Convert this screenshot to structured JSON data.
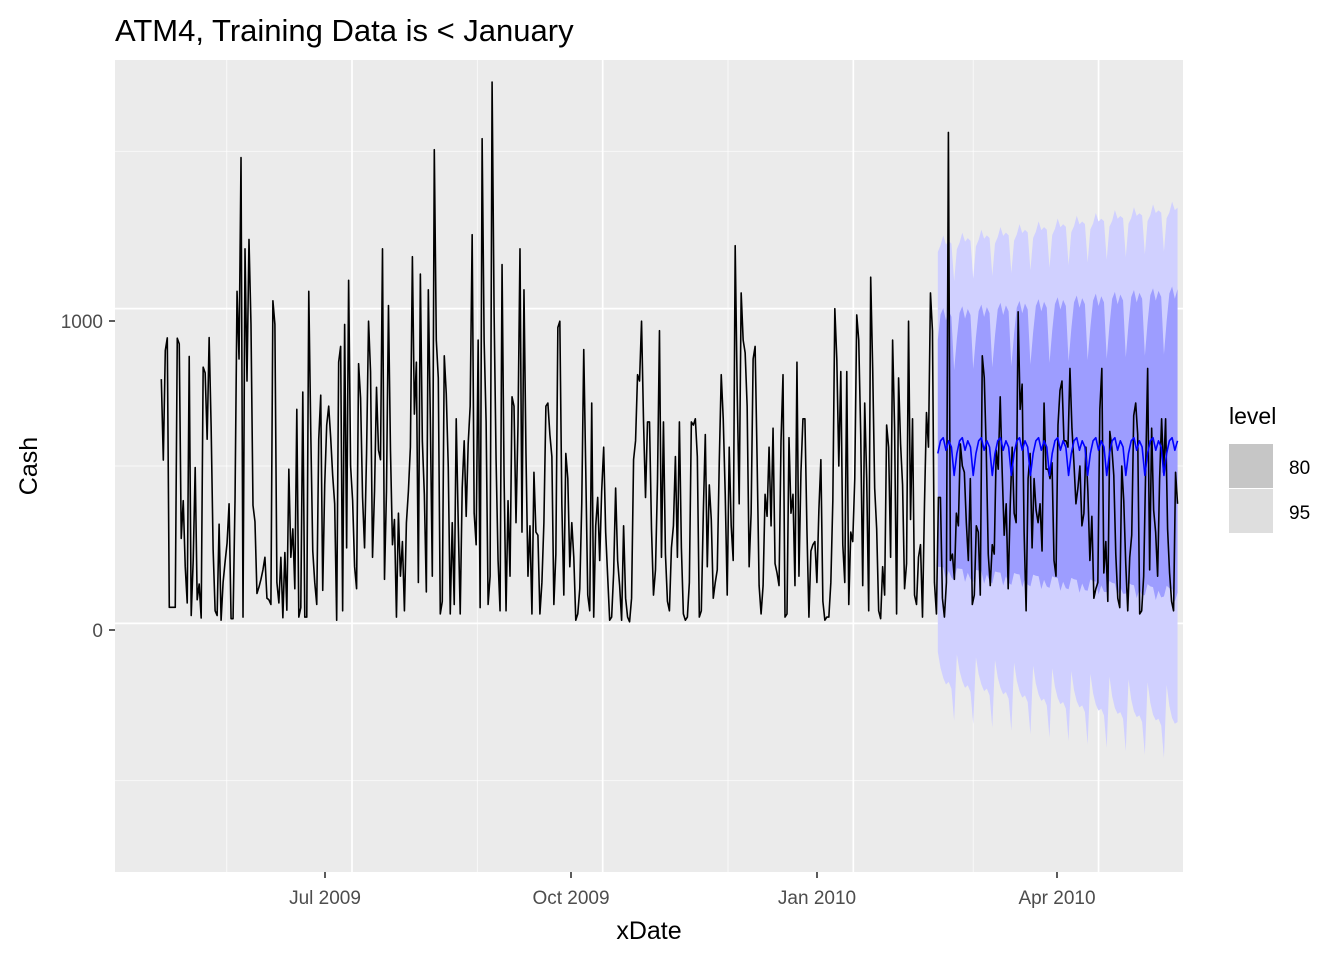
{
  "chart_data": {
    "type": "line",
    "title": "ATM4, Training Data is < January",
    "xlabel": "xDate",
    "ylabel": "Cash",
    "x_ticks": [
      "Jul 2009",
      "Oct 2009",
      "Jan 2010",
      "Apr 2010"
    ],
    "y_ticks": [
      "0",
      "1000"
    ],
    "x_tick_dates": [
      "2009-07-01",
      "2009-10-01",
      "2010-01-01",
      "2010-04-01"
    ],
    "y_tick_values": [
      0,
      1000
    ],
    "xlim": [
      "2009-04-05",
      "2010-05-02"
    ],
    "ylim": [
      -790,
      1790
    ],
    "grid": true,
    "legend": {
      "title": "level",
      "position": "right",
      "entries": [
        {
          "label": "80",
          "color": "#c6c6c6"
        },
        {
          "label": "95",
          "color": "#dedede"
        }
      ]
    },
    "colors": {
      "panel": "#ebebeb",
      "grid": "#ffffff",
      "actual": "#000000",
      "forecast": "#0000ff",
      "band80": "#9d9dff",
      "band95": "#d0d0ff"
    },
    "series": [
      {
        "role": "actual",
        "x_start": "2009-04-22",
        "x_end": "2010-04-30",
        "y": [
          776,
          519,
          867,
          907,
          51,
          51,
          51,
          51,
          906,
          888,
          270,
          390,
          180,
          65,
          848,
          25,
          200,
          495,
          75,
          125,
          17,
          814,
          796,
          585,
          908,
          625,
          235,
          40,
          25,
          315,
          10,
          130,
          195,
          255,
          380,
          15,
          15,
          395,
          1055,
          840,
          1480,
          20,
          1190,
          770,
          1220,
          950,
          375,
          323,
          95,
          115,
          140,
          170,
          210,
          80,
          75,
          60,
          1025,
          950,
          130,
          65,
          210,
          18,
          225,
          42,
          490,
          210,
          300,
          110,
          680,
          20,
          50,
          735,
          20,
          20,
          1055,
          610,
          230,
          130,
          60,
          585,
          725,
          105,
          440,
          630,
          690,
          590,
          470,
          380,
          10,
          830,
          880,
          40,
          950,
          240,
          1090,
          500,
          390,
          180,
          110,
          825,
          715,
          400,
          240,
          540,
          960,
          800,
          210,
          420,
          750,
          550,
          520,
          1190,
          140,
          420,
          1010,
          550,
          250,
          330,
          20,
          350,
          150,
          260,
          40,
          320,
          420,
          560,
          1165,
          665,
          830,
          130,
          1110,
          580,
          410,
          100,
          1060,
          650,
          150,
          1505,
          900,
          780,
          30,
          70,
          850,
          730,
          500,
          30,
          320,
          60,
          650,
          320,
          30,
          430,
          580,
          340,
          570,
          690,
          1235,
          350,
          250,
          900,
          50,
          1540,
          900,
          640,
          60,
          150,
          1720,
          990,
          520,
          200,
          40,
          1140,
          470,
          40,
          390,
          150,
          720,
          690,
          320,
          630,
          1190,
          290,
          1060,
          540,
          150,
          310,
          30,
          480,
          290,
          280,
          30,
          130,
          320,
          690,
          700,
          600,
          530,
          60,
          220,
          940,
          960,
          380,
          90,
          540,
          460,
          180,
          320,
          210,
          10,
          30,
          110,
          380,
          870,
          490,
          90,
          40,
          700,
          20,
          310,
          400,
          200,
          420,
          560,
          290,
          150,
          10,
          20,
          160,
          430,
          200,
          120,
          10,
          310,
          80,
          20,
          5,
          80,
          520,
          580,
          790,
          770,
          960,
          640,
          400,
          640,
          640,
          300,
          90,
          170,
          450,
          930,
          210,
          640,
          220,
          70,
          40,
          240,
          310,
          530,
          210,
          640,
          240,
          30,
          10,
          20,
          130,
          640,
          630,
          650,
          530,
          20,
          40,
          350,
          600,
          180,
          440,
          330,
          80,
          130,
          170,
          510,
          790,
          650,
          410,
          90,
          560,
          310,
          200,
          1200,
          740,
          380,
          1050,
          900,
          860,
          690,
          180,
          350,
          840,
          880,
          520,
          120,
          30,
          120,
          410,
          340,
          560,
          310,
          620,
          190,
          160,
          120,
          580,
          790,
          20,
          30,
          590,
          350,
          410,
          120,
          830,
          150,
          480,
          650,
          650,
          300,
          20,
          230,
          250,
          260,
          130,
          360,
          520,
          70,
          10,
          20,
          20,
          130,
          390,
          1000,
          840,
          500,
          800,
          250,
          130,
          800,
          60,
          290,
          260,
          460,
          980,
          900,
          600,
          120,
          700,
          460,
          40,
          1100,
          810,
          430,
          300,
          40,
          15,
          180,
          90,
          630,
          560,
          210,
          900,
          620,
          30,
          780,
          570,
          440,
          110,
          190,
          960,
          330,
          650,
          90,
          60,
          210,
          250,
          20,
          380,
          670,
          560,
          1050,
          930,
          130,
          30,
          400,
          400,
          80,
          20,
          130,
          1560,
          200,
          220,
          140,
          350,
          310,
          570,
          500,
          480,
          320,
          200,
          460,
          60,
          90,
          310,
          290,
          90,
          850,
          780,
          550,
          220,
          120,
          250,
          220,
          550,
          490,
          720,
          480,
          280,
          380,
          110,
          370,
          560,
          350,
          320,
          990,
          680,
          760,
          290,
          40,
          460,
          540,
          240,
          460,
          360,
          320,
          380,
          230,
          700,
          490,
          490,
          460,
          510,
          200,
          150,
          630,
          740,
          770,
          580,
          580,
          560,
          810,
          620,
          510,
          380,
          430,
          500,
          310,
          350,
          560,
          420,
          200,
          340,
          80,
          110,
          130,
          680,
          810,
          160,
          260,
          70,
          610,
          560,
          470,
          220,
          80,
          50,
          500,
          390,
          190,
          40,
          210,
          280,
          660,
          700,
          600,
          30,
          40,
          150,
          490,
          810,
          170,
          620,
          360,
          290,
          150,
          460,
          650,
          480,
          650,
          300,
          160,
          70,
          40,
          480,
          380
        ]
      },
      {
        "role": "forecast",
        "x_start": "2010-02-01",
        "x_end": "2010-04-30",
        "y_pattern": [
          540,
          580,
          590,
          550,
          580,
          560,
          470
        ],
        "hi80_pattern": [
          900,
          980,
          1000,
          960,
          990,
          970,
          800
        ],
        "lo80_pattern": [
          180,
          180,
          180,
          140,
          170,
          150,
          140
        ],
        "hi95_pattern": [
          1180,
          1200,
          1230,
          1200,
          1210,
          1200,
          1080
        ],
        "lo95_pattern": [
          -90,
          -140,
          -170,
          -190,
          -180,
          -200,
          -300
        ],
        "spread_growth": 0.002
      }
    ]
  }
}
